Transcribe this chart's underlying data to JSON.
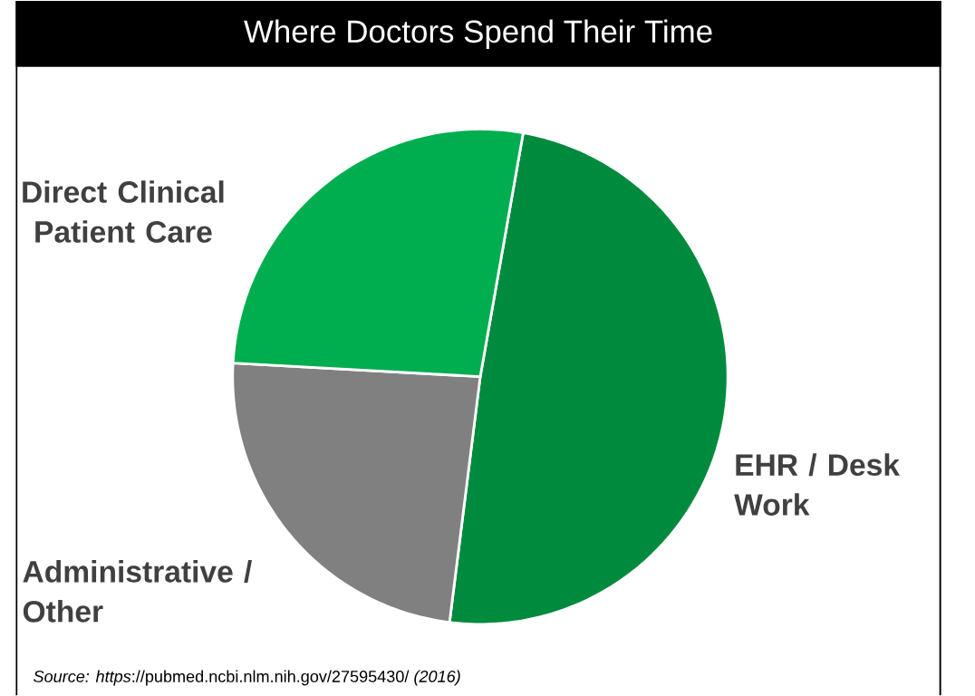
{
  "chart_data": {
    "type": "pie",
    "title": "Where Doctors Spend Their Time",
    "categories": [
      "EHR / Desk Work",
      "Administrative / Other",
      "Direct Clinical Patient Care"
    ],
    "values": [
      49.2,
      23.9,
      26.9
    ],
    "colors": [
      "#008a3e",
      "#808080",
      "#00ae4f"
    ],
    "annotations": [
      "*Source: https*://pubmed.ncbi.nlm.nih.gov/27595430/ *(2016)*"
    ]
  }
}
